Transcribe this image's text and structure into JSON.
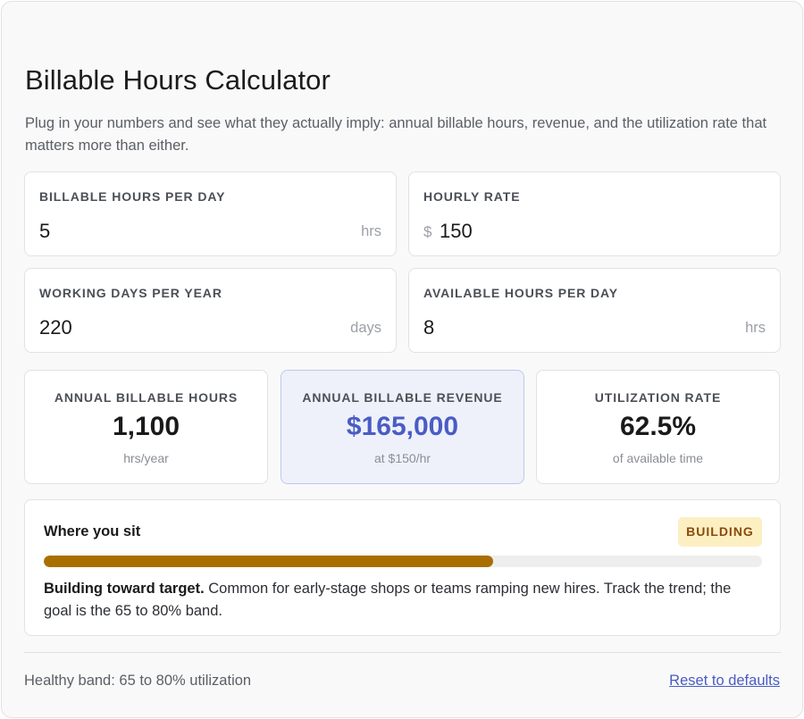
{
  "header": {
    "title": "Billable Hours Calculator",
    "subtitle": "Plug in your numbers and see what they actually imply: annual billable hours, revenue, and the utilization rate that matters more than either."
  },
  "inputs": {
    "hours_per_day": {
      "label": "Billable hours per day",
      "value": "5",
      "unit": "hrs"
    },
    "hourly_rate": {
      "label": "Hourly rate",
      "prefix": "$",
      "value": "150"
    },
    "working_days": {
      "label": "Working days per year",
      "value": "220",
      "unit": "days"
    },
    "available_hours": {
      "label": "Available hours per day",
      "value": "8",
      "unit": "hrs"
    }
  },
  "results": {
    "annual_hours": {
      "label": "Annual billable hours",
      "value": "1,100",
      "sub": "hrs/year"
    },
    "annual_revenue": {
      "label": "Annual billable revenue",
      "value": "$165,000",
      "sub": "at $150/hr"
    },
    "utilization": {
      "label": "Utilization rate",
      "value": "62.5%",
      "sub": "of available time"
    }
  },
  "position": {
    "title": "Where you sit",
    "badge": "BUILDING",
    "progress": 0.625,
    "desc_bold": "Building toward target.",
    "desc_text": " Common for early-stage shops or teams ramping new hires. Track the trend; the goal is the 65 to 80% band."
  },
  "footer": {
    "note": "Healthy band: 65 to 80% utilization",
    "reset_label": "Reset to defaults"
  },
  "colors": {
    "accent": "#4a5cc4",
    "progress_fill": "#a86f00",
    "badge_bg": "#fcefc2",
    "badge_text": "#8b4a0c"
  }
}
